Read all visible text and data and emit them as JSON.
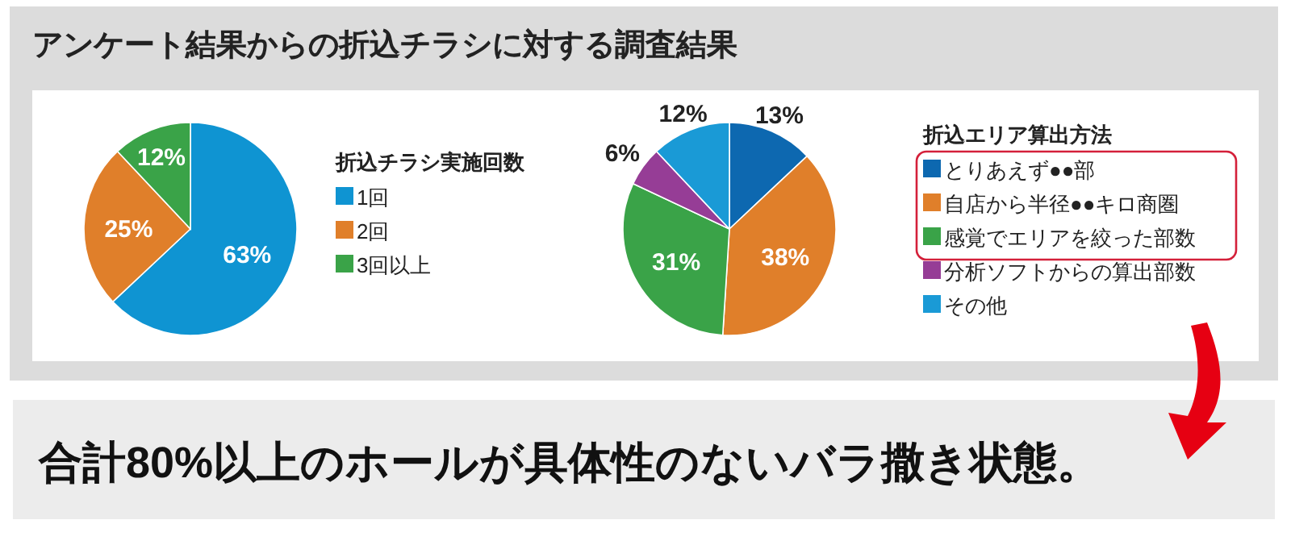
{
  "chart_data": [
    {
      "type": "pie",
      "title": "アンケート結果からの折込チラシに対する調査結果",
      "legend_title": "折込チラシ実施回数",
      "legend": "right",
      "value_labels": [
        "63%",
        "25%",
        "12%"
      ],
      "categories": [
        "1回",
        "2回",
        "3回以上"
      ],
      "values": [
        63,
        25,
        12
      ],
      "colors": [
        "#0f94d2",
        "#e07f2a",
        "#3aa348"
      ]
    },
    {
      "type": "pie",
      "legend_title": "折込エリア算出方法",
      "legend": "right",
      "value_labels": [
        "13%",
        "38%",
        "31%",
        "6%",
        "12%"
      ],
      "categories": [
        "とりあえず●●部",
        "自店から半径●●キロ商圏",
        "感覚でエリアを絞った部数",
        "分析ソフトからの算出部数",
        "その他"
      ],
      "values": [
        13,
        38,
        31,
        6,
        12
      ],
      "colors": [
        "#0d68b0",
        "#e07f2a",
        "#3aa348",
        "#963d96",
        "#1a9ad6"
      ],
      "annotations": [
        "合計80%以上のホールが具体性のないバラ撒き状態。"
      ]
    }
  ]
}
